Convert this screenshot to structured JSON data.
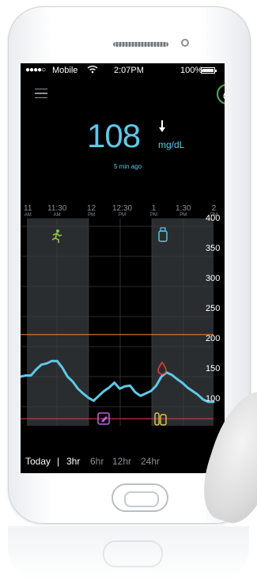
{
  "status_bar": {
    "signal": "●●●●○",
    "carrier": "Mobile",
    "time": "2:07PM",
    "battery": "100%"
  },
  "reading": {
    "value": "108",
    "unit": "mg/dL",
    "age": "5 min ago",
    "trend": "falling"
  },
  "time_axis": [
    {
      "hour": "11",
      "ampm": "AM"
    },
    {
      "hour": "11:30",
      "ampm": "AM"
    },
    {
      "hour": "12",
      "ampm": "PM"
    },
    {
      "hour": "12:30",
      "ampm": "PM"
    },
    {
      "hour": "1",
      "ampm": "PM"
    },
    {
      "hour": "1:30",
      "ampm": "PM"
    },
    {
      "hour": "2",
      "ampm": "PM"
    }
  ],
  "y_axis": [
    "400",
    "350",
    "300",
    "250",
    "200",
    "150",
    "100"
  ],
  "range_tabs": {
    "today": "Today",
    "separator": "|",
    "r3": "3hr",
    "r6": "6hr",
    "r12": "12hr",
    "r24": "24hr",
    "selected": "3hr"
  },
  "colors": {
    "glucose": "#5fc8e6",
    "high_line": "#e07a3c",
    "low_line": "#d23b48",
    "exercise": "#8bc34a",
    "insulin": "#5fc8e6",
    "note": "#b764d6",
    "meal": "#e0c84a",
    "drop": "#e33b3b"
  },
  "chart_data": {
    "type": "line",
    "series": [
      {
        "x": [
          0,
          5,
          10,
          15,
          20,
          25,
          30,
          35,
          40,
          45,
          50,
          55,
          60,
          65,
          70,
          75,
          80,
          85,
          90,
          95,
          100,
          105,
          110,
          115,
          120,
          125,
          130,
          135,
          140,
          145,
          150,
          155,
          160,
          165,
          170,
          175,
          180,
          185
        ],
        "y": [
          150,
          152,
          152,
          162,
          170,
          172,
          176,
          176,
          165,
          150,
          142,
          130,
          122,
          115,
          110,
          118,
          126,
          132,
          140,
          130,
          134,
          135,
          124,
          118,
          122,
          126,
          135,
          150,
          157,
          153,
          146,
          140,
          132,
          126,
          120,
          112,
          108,
          108
        ]
      }
    ],
    "ylim": [
      50,
      400
    ],
    "thresholds": [
      220,
      80
    ],
    "events": [
      "exercise",
      "insulin",
      "drop",
      "note",
      "meal"
    ],
    "grid": true
  }
}
